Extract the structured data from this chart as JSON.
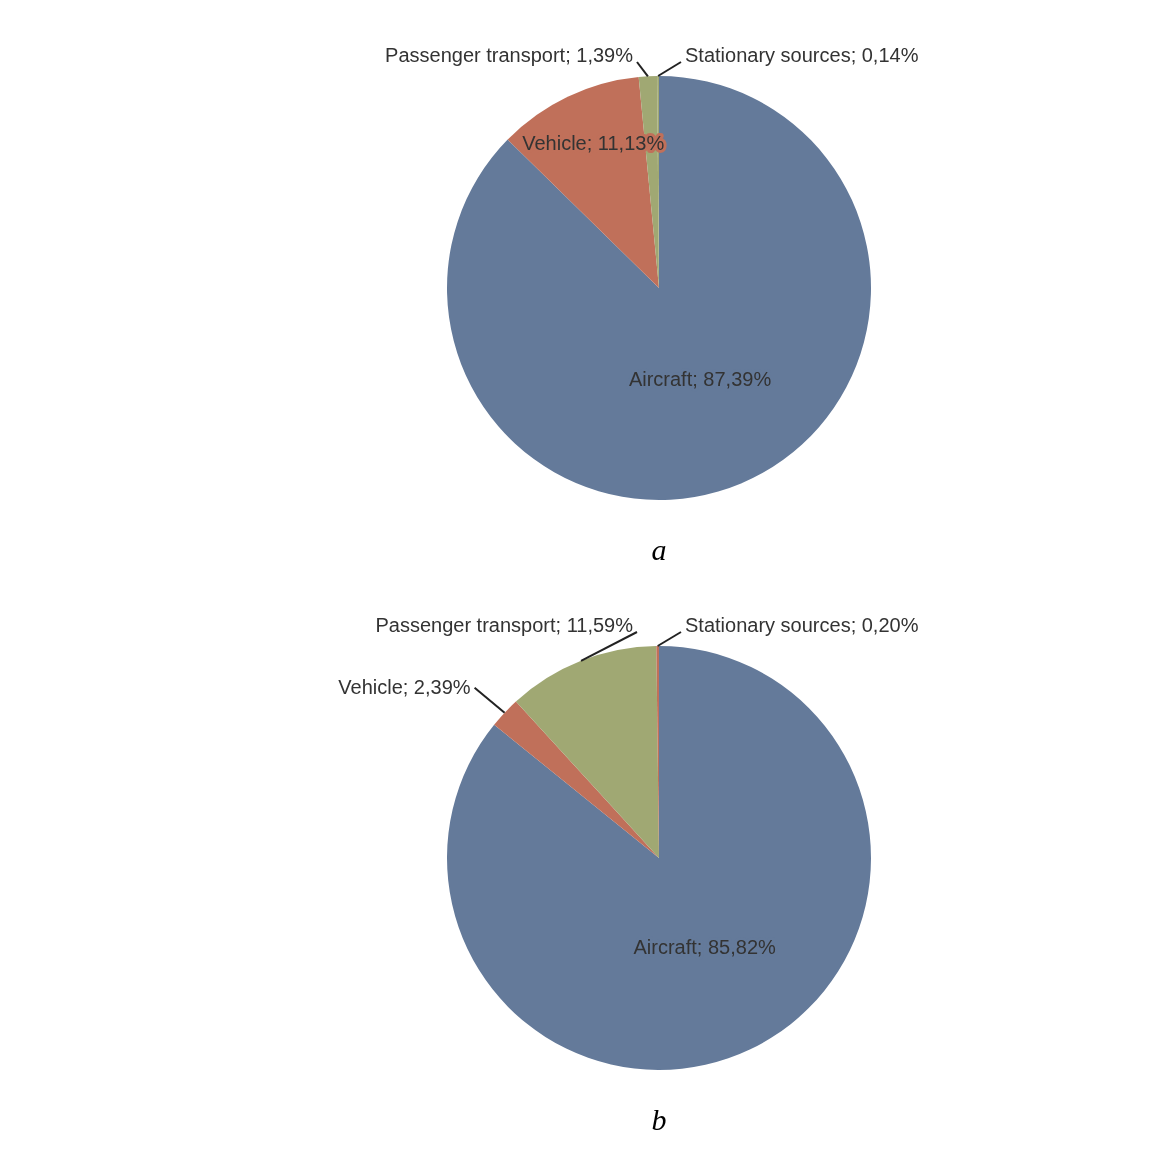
{
  "chart_data": [
    {
      "type": "pie",
      "title": "a",
      "categories": [
        "Aircraft",
        "Vehicle",
        "Passenger transport",
        "Stationary sources"
      ],
      "values": [
        87.39,
        11.13,
        1.39,
        0.14
      ],
      "value_labels": [
        "87,39%",
        "11,13%",
        "1,39%",
        "0,14%"
      ],
      "colors": [
        "#647a9a",
        "#c0705a",
        "#a0a873",
        "#a0a873"
      ],
      "legend": false
    },
    {
      "type": "pie",
      "title": "b",
      "categories": [
        "Aircraft",
        "Vehicle",
        "Passenger transport",
        "Stationary sources"
      ],
      "values": [
        85.82,
        2.39,
        11.59,
        0.2
      ],
      "value_labels": [
        "85,82%",
        "2,39%",
        "11,59%",
        "0,20%"
      ],
      "colors": [
        "#647a9a",
        "#c0705a",
        "#a0a873",
        "#c0705a"
      ],
      "legend": false
    }
  ]
}
